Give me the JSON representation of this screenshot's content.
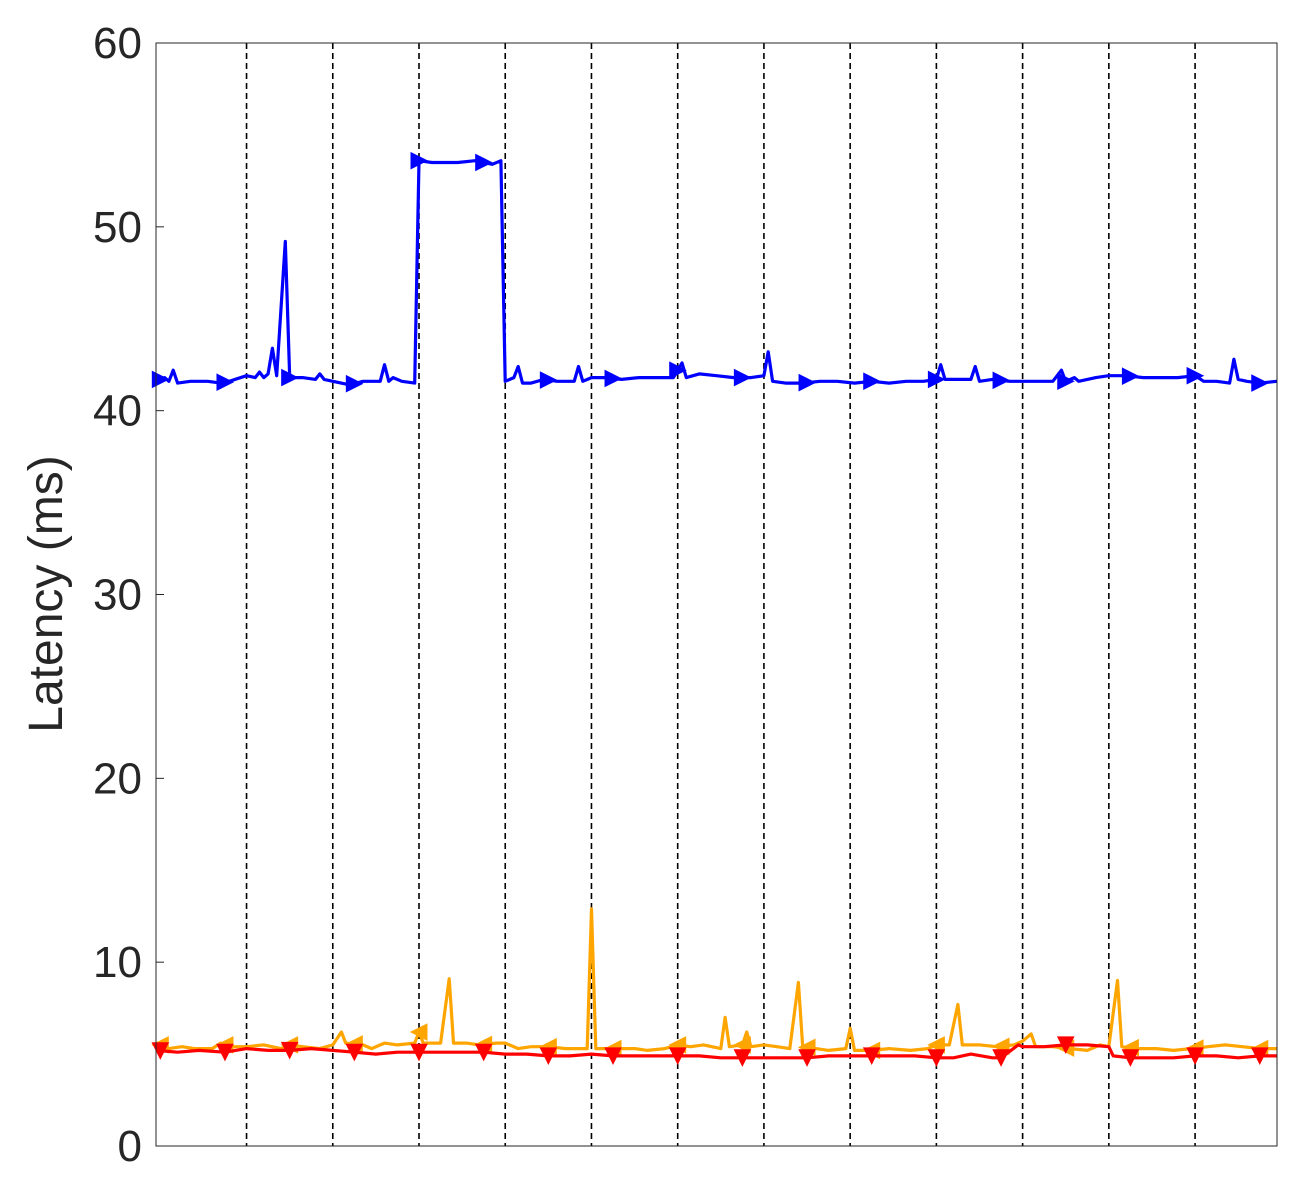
{
  "chart_data": {
    "type": "line",
    "title": "",
    "xlabel": "",
    "ylabel": "Latency (ms)",
    "xlim": [
      0,
      260
    ],
    "ylim": [
      0,
      60
    ],
    "yticks": [
      0,
      10,
      20,
      30,
      40,
      50,
      60
    ],
    "xticks_shown": false,
    "grid": false,
    "segment_dividers_x": [
      21,
      41,
      61,
      81,
      101,
      121,
      141,
      161,
      181,
      201,
      221,
      241
    ],
    "colors": {
      "blue": "#0000ff",
      "orange": "#ffa500",
      "red": "#ff0000",
      "divider": "#000000",
      "axis": "#262626"
    },
    "series": [
      {
        "color": "#0000ff",
        "marker": "triangle-right",
        "points": [
          [
            0,
            41.6
          ],
          [
            2,
            41.8
          ],
          [
            3,
            41.6
          ],
          [
            4,
            42.2
          ],
          [
            5,
            41.5
          ],
          [
            8,
            41.6
          ],
          [
            12,
            41.6
          ],
          [
            15,
            41.5
          ],
          [
            17,
            41.6
          ],
          [
            21,
            41.9
          ],
          [
            23,
            41.8
          ],
          [
            24,
            42.1
          ],
          [
            25,
            41.8
          ],
          [
            26,
            42.0
          ],
          [
            27,
            43.4
          ],
          [
            28,
            41.9
          ],
          [
            30,
            49.2
          ],
          [
            31,
            41.8
          ],
          [
            34,
            41.8
          ],
          [
            37,
            41.7
          ],
          [
            38,
            42.0
          ],
          [
            39,
            41.7
          ],
          [
            41,
            41.6
          ],
          [
            45,
            41.4
          ],
          [
            48,
            41.6
          ],
          [
            52,
            41.6
          ],
          [
            53,
            42.5
          ],
          [
            54,
            41.6
          ],
          [
            55,
            41.8
          ],
          [
            57,
            41.6
          ],
          [
            60,
            41.5
          ],
          [
            61,
            53.6
          ],
          [
            64,
            53.5
          ],
          [
            70,
            53.5
          ],
          [
            74,
            53.6
          ],
          [
            78,
            53.4
          ],
          [
            80,
            53.6
          ],
          [
            81,
            41.6
          ],
          [
            83,
            41.8
          ],
          [
            84,
            42.4
          ],
          [
            85,
            41.5
          ],
          [
            87,
            41.5
          ],
          [
            90,
            41.7
          ],
          [
            93,
            41.6
          ],
          [
            97,
            41.6
          ],
          [
            98,
            42.4
          ],
          [
            99,
            41.6
          ],
          [
            101,
            41.8
          ],
          [
            104,
            41.8
          ],
          [
            108,
            41.7
          ],
          [
            112,
            41.8
          ],
          [
            116,
            41.8
          ],
          [
            120,
            41.8
          ],
          [
            122,
            42.6
          ],
          [
            123,
            41.8
          ],
          [
            126,
            42.0
          ],
          [
            130,
            41.9
          ],
          [
            134,
            41.8
          ],
          [
            138,
            41.8
          ],
          [
            141,
            41.9
          ],
          [
            142,
            43.2
          ],
          [
            143,
            41.6
          ],
          [
            146,
            41.5
          ],
          [
            150,
            41.5
          ],
          [
            154,
            41.6
          ],
          [
            158,
            41.6
          ],
          [
            162,
            41.5
          ],
          [
            166,
            41.6
          ],
          [
            170,
            41.5
          ],
          [
            174,
            41.6
          ],
          [
            178,
            41.6
          ],
          [
            181,
            41.7
          ],
          [
            182,
            42.5
          ],
          [
            183,
            41.7
          ],
          [
            186,
            41.7
          ],
          [
            189,
            41.7
          ],
          [
            190,
            42.4
          ],
          [
            191,
            41.6
          ],
          [
            194,
            41.7
          ],
          [
            198,
            41.6
          ],
          [
            201,
            41.6
          ],
          [
            204,
            41.6
          ],
          [
            208,
            41.6
          ],
          [
            210,
            42.2
          ],
          [
            211,
            41.6
          ],
          [
            213,
            41.8
          ],
          [
            214,
            41.6
          ],
          [
            218,
            41.8
          ],
          [
            221,
            41.9
          ],
          [
            225,
            41.9
          ],
          [
            229,
            41.8
          ],
          [
            233,
            41.8
          ],
          [
            237,
            41.8
          ],
          [
            241,
            41.9
          ],
          [
            243,
            41.6
          ],
          [
            246,
            41.6
          ],
          [
            249,
            41.5
          ],
          [
            250,
            42.8
          ],
          [
            251,
            41.7
          ],
          [
            253,
            41.6
          ],
          [
            256,
            41.5
          ],
          [
            260,
            41.6
          ]
        ],
        "marker_x": [
          1,
          16,
          31,
          46,
          61,
          76,
          91,
          106,
          121,
          136,
          151,
          166,
          181,
          196,
          211,
          226,
          241,
          256
        ]
      },
      {
        "color": "#ffa500",
        "marker": "triangle-left",
        "points": [
          [
            0,
            5.6
          ],
          [
            3,
            5.3
          ],
          [
            6,
            5.4
          ],
          [
            9,
            5.3
          ],
          [
            13,
            5.3
          ],
          [
            15,
            5.6
          ],
          [
            17,
            5.4
          ],
          [
            21,
            5.4
          ],
          [
            25,
            5.5
          ],
          [
            29,
            5.3
          ],
          [
            31,
            5.5
          ],
          [
            34,
            5.4
          ],
          [
            38,
            5.3
          ],
          [
            41,
            5.5
          ],
          [
            43,
            6.2
          ],
          [
            44,
            5.6
          ],
          [
            48,
            5.5
          ],
          [
            50,
            5.3
          ],
          [
            53,
            5.6
          ],
          [
            56,
            5.5
          ],
          [
            60,
            5.6
          ],
          [
            61,
            6.2
          ],
          [
            62,
            5.6
          ],
          [
            66,
            5.6
          ],
          [
            68,
            9.1
          ],
          [
            69,
            5.6
          ],
          [
            72,
            5.6
          ],
          [
            75,
            5.5
          ],
          [
            79,
            5.6
          ],
          [
            81,
            5.6
          ],
          [
            84,
            5.3
          ],
          [
            87,
            5.4
          ],
          [
            91,
            5.4
          ],
          [
            95,
            5.3
          ],
          [
            100,
            5.3
          ],
          [
            101,
            12.9
          ],
          [
            102,
            5.3
          ],
          [
            105,
            5.3
          ],
          [
            108,
            5.3
          ],
          [
            111,
            5.3
          ],
          [
            114,
            5.2
          ],
          [
            118,
            5.3
          ],
          [
            121,
            5.5
          ],
          [
            124,
            5.4
          ],
          [
            127,
            5.5
          ],
          [
            131,
            5.3
          ],
          [
            132,
            7.0
          ],
          [
            133,
            5.4
          ],
          [
            136,
            5.5
          ],
          [
            137,
            6.2
          ],
          [
            138,
            5.4
          ],
          [
            141,
            5.5
          ],
          [
            144,
            5.4
          ],
          [
            147,
            5.3
          ],
          [
            149,
            8.9
          ],
          [
            150,
            5.4
          ],
          [
            153,
            5.3
          ],
          [
            156,
            5.2
          ],
          [
            160,
            5.3
          ],
          [
            161,
            6.4
          ],
          [
            162,
            5.2
          ],
          [
            166,
            5.2
          ],
          [
            170,
            5.3
          ],
          [
            175,
            5.2
          ],
          [
            179,
            5.3
          ],
          [
            181,
            5.5
          ],
          [
            184,
            5.5
          ],
          [
            186,
            7.7
          ],
          [
            187,
            5.5
          ],
          [
            191,
            5.5
          ],
          [
            195,
            5.4
          ],
          [
            199,
            5.5
          ],
          [
            201,
            5.7
          ],
          [
            203,
            6.1
          ],
          [
            204,
            5.4
          ],
          [
            208,
            5.4
          ],
          [
            212,
            5.3
          ],
          [
            216,
            5.2
          ],
          [
            219,
            5.5
          ],
          [
            221,
            5.4
          ],
          [
            223,
            9.0
          ],
          [
            224,
            5.4
          ],
          [
            228,
            5.3
          ],
          [
            232,
            5.3
          ],
          [
            236,
            5.2
          ],
          [
            240,
            5.3
          ],
          [
            244,
            5.4
          ],
          [
            248,
            5.5
          ],
          [
            252,
            5.4
          ],
          [
            256,
            5.3
          ],
          [
            260,
            5.3
          ]
        ],
        "marker_x": [
          1,
          16,
          31,
          46,
          61,
          76,
          91,
          106,
          121,
          136,
          151,
          166,
          181,
          196,
          211,
          226,
          241,
          256
        ]
      },
      {
        "color": "#ff0000",
        "marker": "triangle-down",
        "points": [
          [
            0,
            5.2
          ],
          [
            5,
            5.1
          ],
          [
            10,
            5.2
          ],
          [
            16,
            5.1
          ],
          [
            21,
            5.3
          ],
          [
            26,
            5.2
          ],
          [
            31,
            5.2
          ],
          [
            36,
            5.3
          ],
          [
            41,
            5.2
          ],
          [
            46,
            5.1
          ],
          [
            51,
            5.0
          ],
          [
            56,
            5.1
          ],
          [
            61,
            5.1
          ],
          [
            66,
            5.1
          ],
          [
            71,
            5.1
          ],
          [
            76,
            5.1
          ],
          [
            81,
            5.0
          ],
          [
            86,
            5.0
          ],
          [
            91,
            4.9
          ],
          [
            96,
            4.9
          ],
          [
            101,
            5.0
          ],
          [
            106,
            4.9
          ],
          [
            111,
            4.9
          ],
          [
            116,
            4.9
          ],
          [
            121,
            4.9
          ],
          [
            126,
            4.9
          ],
          [
            131,
            4.8
          ],
          [
            136,
            4.8
          ],
          [
            141,
            4.8
          ],
          [
            146,
            4.8
          ],
          [
            151,
            4.8
          ],
          [
            156,
            4.9
          ],
          [
            161,
            4.9
          ],
          [
            166,
            4.9
          ],
          [
            171,
            4.9
          ],
          [
            176,
            4.9
          ],
          [
            181,
            4.8
          ],
          [
            185,
            4.8
          ],
          [
            189,
            5.0
          ],
          [
            194,
            4.8
          ],
          [
            196,
            4.8
          ],
          [
            200,
            5.5
          ],
          [
            201,
            5.4
          ],
          [
            206,
            5.4
          ],
          [
            211,
            5.5
          ],
          [
            216,
            5.5
          ],
          [
            221,
            5.4
          ],
          [
            222,
            4.9
          ],
          [
            226,
            4.8
          ],
          [
            231,
            4.8
          ],
          [
            236,
            4.8
          ],
          [
            241,
            4.9
          ],
          [
            246,
            4.9
          ],
          [
            251,
            4.8
          ],
          [
            256,
            4.9
          ],
          [
            260,
            4.9
          ]
        ],
        "marker_x": [
          1,
          16,
          31,
          46,
          61,
          76,
          91,
          106,
          121,
          136,
          151,
          166,
          181,
          196,
          211,
          226,
          241,
          256
        ]
      }
    ]
  }
}
